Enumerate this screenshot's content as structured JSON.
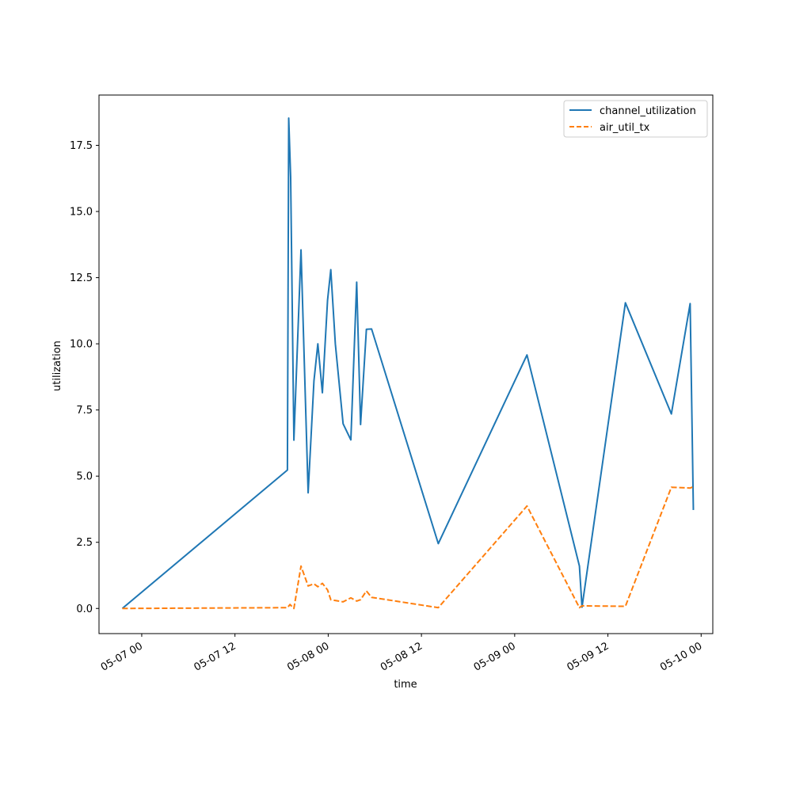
{
  "chart_data": {
    "type": "line",
    "xlabel": "time",
    "ylabel": "utilization",
    "xlim": [
      "2024-05-06T18:30",
      "2024-05-10T01:30"
    ],
    "ylim": [
      -0.95,
      19.4
    ],
    "x_tick_labels": [
      {
        "t": "2024-05-07T00:00",
        "label": "05-07 00"
      },
      {
        "t": "2024-05-07T12:00",
        "label": "05-07 12"
      },
      {
        "t": "2024-05-08T00:00",
        "label": "05-08 00"
      },
      {
        "t": "2024-05-08T12:00",
        "label": "05-08 12"
      },
      {
        "t": "2024-05-09T00:00",
        "label": "05-09 00"
      },
      {
        "t": "2024-05-09T12:00",
        "label": "05-09 12"
      },
      {
        "t": "2024-05-10T00:00",
        "label": "05-10 00"
      }
    ],
    "y_tick_labels": [
      {
        "v": 0.0,
        "label": "0.0"
      },
      {
        "v": 2.5,
        "label": "2.5"
      },
      {
        "v": 5.0,
        "label": "5.0"
      },
      {
        "v": 7.5,
        "label": "7.5"
      },
      {
        "v": 10.0,
        "label": "10.0"
      },
      {
        "v": 12.5,
        "label": "12.5"
      },
      {
        "v": 15.0,
        "label": "15.0"
      },
      {
        "v": 17.5,
        "label": "17.5"
      }
    ],
    "grid": false,
    "legend_position": "top-right",
    "series": [
      {
        "name": "channel_utilization",
        "color": "#1f77b4",
        "style": "solid",
        "points": [
          [
            "2024-05-06T21:30",
            0.0
          ],
          [
            "2024-05-07T18:45",
            5.23
          ],
          [
            "2024-05-07T18:55",
            18.53
          ],
          [
            "2024-05-07T19:10",
            16.3
          ],
          [
            "2024-05-07T19:35",
            6.36
          ],
          [
            "2024-05-07T20:30",
            13.55
          ],
          [
            "2024-05-07T21:25",
            4.37
          ],
          [
            "2024-05-07T22:10",
            8.6
          ],
          [
            "2024-05-07T22:40",
            10.0
          ],
          [
            "2024-05-07T23:15",
            8.15
          ],
          [
            "2024-05-07T23:55",
            11.65
          ],
          [
            "2024-05-08T00:20",
            12.8
          ],
          [
            "2024-05-08T00:55",
            10.0
          ],
          [
            "2024-05-08T01:55",
            6.98
          ],
          [
            "2024-05-08T02:55",
            6.37
          ],
          [
            "2024-05-08T02:55",
            6.37
          ],
          [
            "2024-05-08T03:40",
            12.33
          ],
          [
            "2024-05-08T04:10",
            6.95
          ],
          [
            "2024-05-08T04:55",
            10.55
          ],
          [
            "2024-05-08T05:35",
            10.56
          ],
          [
            "2024-05-08T14:10",
            2.45
          ],
          [
            "2024-05-09T01:35",
            9.58
          ],
          [
            "2024-05-09T08:20",
            1.6
          ],
          [
            "2024-05-09T08:40",
            0.05
          ],
          [
            "2024-05-09T14:15",
            11.55
          ],
          [
            "2024-05-09T20:10",
            7.35
          ],
          [
            "2024-05-09T22:35",
            11.52
          ],
          [
            "2024-05-09T23:00",
            3.72
          ]
        ]
      },
      {
        "name": "air_util_tx",
        "color": "#ff7f0e",
        "style": "dashed",
        "points": [
          [
            "2024-05-06T21:30",
            0.0
          ],
          [
            "2024-05-07T18:45",
            0.03
          ],
          [
            "2024-05-07T19:05",
            0.15
          ],
          [
            "2024-05-07T19:35",
            0.0
          ],
          [
            "2024-05-07T20:30",
            1.6
          ],
          [
            "2024-05-07T21:25",
            0.85
          ],
          [
            "2024-05-07T22:10",
            0.93
          ],
          [
            "2024-05-07T22:40",
            0.82
          ],
          [
            "2024-05-07T23:15",
            0.95
          ],
          [
            "2024-05-07T23:55",
            0.7
          ],
          [
            "2024-05-08T00:20",
            0.33
          ],
          [
            "2024-05-08T01:55",
            0.25
          ],
          [
            "2024-05-08T02:55",
            0.4
          ],
          [
            "2024-05-08T03:40",
            0.28
          ],
          [
            "2024-05-08T04:10",
            0.33
          ],
          [
            "2024-05-08T04:55",
            0.66
          ],
          [
            "2024-05-08T05:35",
            0.42
          ],
          [
            "2024-05-08T14:10",
            0.03
          ],
          [
            "2024-05-09T01:35",
            3.87
          ],
          [
            "2024-05-09T08:20",
            0.03
          ],
          [
            "2024-05-09T08:40",
            0.1
          ],
          [
            "2024-05-09T14:15",
            0.08
          ],
          [
            "2024-05-09T20:10",
            4.58
          ],
          [
            "2024-05-09T22:35",
            4.55
          ],
          [
            "2024-05-09T23:00",
            4.6
          ]
        ]
      }
    ]
  }
}
